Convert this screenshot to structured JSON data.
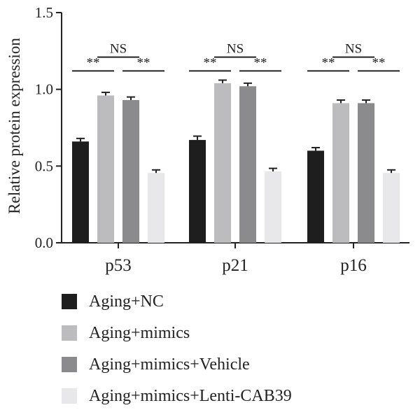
{
  "chart_data": {
    "type": "bar",
    "title": "",
    "xlabel": "",
    "ylabel": "Relative protein expression",
    "ylim": [
      0,
      1.5
    ],
    "yticks": [
      "0.0",
      "0.5",
      "1.0",
      "1.5"
    ],
    "categories": [
      "p53",
      "p21",
      "p16"
    ],
    "series": [
      {
        "name": "Aging+NC",
        "color": "#1e1e1e",
        "values": [
          0.66,
          0.67,
          0.6
        ],
        "errors": [
          0.02,
          0.025,
          0.02
        ]
      },
      {
        "name": "Aging+mimics",
        "color": "#bcbcbf",
        "values": [
          0.96,
          1.04,
          0.91
        ],
        "errors": [
          0.02,
          0.02,
          0.02
        ]
      },
      {
        "name": "Aging+mimics+Vehicle",
        "color": "#8b8b8d",
        "values": [
          0.93,
          1.02,
          0.91
        ],
        "errors": [
          0.02,
          0.02,
          0.02
        ]
      },
      {
        "name": "Aging+mimics+Lenti-CAB39",
        "color": "#e8e8ea",
        "values": [
          0.455,
          0.465,
          0.455
        ],
        "errors": [
          0.02,
          0.02,
          0.02
        ]
      }
    ],
    "significance": [
      {
        "category": 0,
        "from": 0,
        "to": 1,
        "label": "**",
        "y": 1.12
      },
      {
        "category": 0,
        "from": 1,
        "to": 2,
        "label": "NS",
        "y": 1.21
      },
      {
        "category": 0,
        "from": 2,
        "to": 3,
        "label": "**",
        "y": 1.12
      },
      {
        "category": 1,
        "from": 0,
        "to": 1,
        "label": "**",
        "y": 1.12
      },
      {
        "category": 1,
        "from": 1,
        "to": 2,
        "label": "NS",
        "y": 1.21
      },
      {
        "category": 1,
        "from": 2,
        "to": 3,
        "label": "**",
        "y": 1.12
      },
      {
        "category": 2,
        "from": 0,
        "to": 1,
        "label": "**",
        "y": 1.12
      },
      {
        "category": 2,
        "from": 1,
        "to": 2,
        "label": "NS",
        "y": 1.21
      },
      {
        "category": 2,
        "from": 2,
        "to": 3,
        "label": "**",
        "y": 1.12
      }
    ],
    "legend_position": "bottom"
  }
}
